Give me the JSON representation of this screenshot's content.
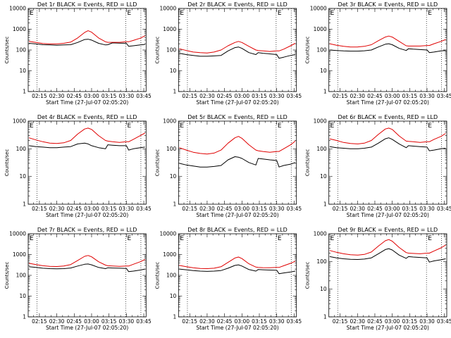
{
  "colors": {
    "events": "#000000",
    "lld": "#e00000",
    "background": "#ffffff"
  },
  "chart_data": [
    {
      "type": "line",
      "title": "Det 1r BLACK = Events, RED = LLD",
      "xlabel": "Start Time (27-Jul-07 02:05:20)",
      "ylabel": "Counts/sec",
      "yscale": "log",
      "ylim": [
        1,
        10000
      ],
      "xlim": [
        "02:05:20",
        "03:47:00"
      ],
      "x_tick_labels": [
        "02:15",
        "02:30",
        "02:45",
        "03:00",
        "03:15",
        "03:30",
        "03:45"
      ],
      "y_tick_labels": [
        "1",
        "10",
        "100",
        "1000",
        "10000"
      ],
      "vertical_lines": [
        "02:13:00",
        "03:29:30",
        "03:42:30"
      ],
      "corner_letter": "E",
      "x": [
        "02:06",
        "02:12",
        "02:18",
        "02:24",
        "02:30",
        "02:36",
        "02:42",
        "02:48",
        "02:54",
        "02:57",
        "03:00",
        "03:06",
        "03:12",
        "03:14",
        "03:18",
        "03:24",
        "03:30",
        "03:32",
        "03:36",
        "03:42",
        "03:46"
      ],
      "series": [
        {
          "color": "black",
          "values": [
            210,
            195,
            180,
            175,
            170,
            175,
            180,
            230,
            320,
            330,
            300,
            210,
            175,
            180,
            220,
            215,
            210,
            150,
            160,
            175,
            185
          ]
        },
        {
          "color": "red",
          "values": [
            260,
            230,
            205,
            195,
            195,
            210,
            240,
            380,
            700,
            850,
            720,
            380,
            250,
            235,
            235,
            235,
            250,
            250,
            290,
            370,
            480
          ]
        }
      ]
    },
    {
      "type": "line",
      "title": "Det 2r BLACK = Events, RED = LLD",
      "xlabel": "Start Time (27-Jul-07 02:05:20)",
      "ylabel": "Counts/sec",
      "yscale": "log",
      "ylim": [
        1,
        10000
      ],
      "xlim": [
        "02:05:20",
        "03:47:00"
      ],
      "x_tick_labels": [
        "02:15",
        "02:30",
        "02:45",
        "03:00",
        "03:15",
        "03:30",
        "03:45"
      ],
      "y_tick_labels": [
        "1",
        "10",
        "100",
        "1000",
        "10000"
      ],
      "vertical_lines": [
        "02:13:00",
        "03:29:30",
        "03:42:30"
      ],
      "corner_letter": "E",
      "x": [
        "02:06",
        "02:12",
        "02:18",
        "02:24",
        "02:30",
        "02:36",
        "02:42",
        "02:48",
        "02:54",
        "02:57",
        "03:00",
        "03:06",
        "03:12",
        "03:14",
        "03:18",
        "03:24",
        "03:30",
        "03:32",
        "03:36",
        "03:42",
        "03:46"
      ],
      "series": [
        {
          "color": "black",
          "values": [
            70,
            60,
            55,
            50,
            50,
            52,
            55,
            90,
            130,
            140,
            120,
            75,
            60,
            75,
            70,
            65,
            60,
            40,
            45,
            55,
            60
          ]
        },
        {
          "color": "red",
          "values": [
            115,
            95,
            80,
            75,
            72,
            80,
            100,
            160,
            230,
            260,
            230,
            150,
            100,
            95,
            90,
            85,
            90,
            90,
            110,
            160,
            210
          ]
        }
      ]
    },
    {
      "type": "line",
      "title": "Det 3r BLACK = Events, RED = LLD",
      "xlabel": "Start Time (27-Jul-07 02:05:20)",
      "ylabel": "Counts/sec",
      "yscale": "log",
      "ylim": [
        1,
        10000
      ],
      "xlim": [
        "02:05:20",
        "03:47:00"
      ],
      "x_tick_labels": [
        "02:15",
        "02:30",
        "02:45",
        "03:00",
        "03:15",
        "03:30",
        "03:45"
      ],
      "y_tick_labels": [
        "1",
        "10",
        "100",
        "1000",
        "10000"
      ],
      "vertical_lines": [
        "02:13:00",
        "03:29:30",
        "03:42:30"
      ],
      "corner_letter": "E",
      "x": [
        "02:06",
        "02:12",
        "02:18",
        "02:24",
        "02:30",
        "02:36",
        "02:42",
        "02:48",
        "02:54",
        "02:57",
        "03:00",
        "03:06",
        "03:12",
        "03:14",
        "03:18",
        "03:24",
        "03:30",
        "03:32",
        "03:36",
        "03:42",
        "03:46"
      ],
      "series": [
        {
          "color": "black",
          "values": [
            100,
            95,
            90,
            88,
            88,
            92,
            100,
            140,
            190,
            200,
            180,
            120,
            95,
            115,
            110,
            105,
            100,
            75,
            80,
            90,
            95
          ]
        },
        {
          "color": "red",
          "values": [
            200,
            170,
            150,
            140,
            140,
            150,
            180,
            280,
            420,
            470,
            420,
            260,
            160,
            155,
            155,
            155,
            165,
            165,
            200,
            260,
            320
          ]
        }
      ]
    },
    {
      "type": "line",
      "title": "Det 4r BLACK = Events, RED = LLD",
      "xlabel": "Start Time (27-Jul-07 02:05:20)",
      "ylabel": "Counts/sec",
      "yscale": "log",
      "ylim": [
        1,
        1000
      ],
      "xlim": [
        "02:05:20",
        "03:47:00"
      ],
      "x_tick_labels": [
        "02:15",
        "02:30",
        "02:45",
        "03:00",
        "03:15",
        "03:30",
        "03:45"
      ],
      "y_tick_labels": [
        "1",
        "10",
        "100",
        "1000"
      ],
      "vertical_lines": [
        "02:13:00",
        "03:29:30",
        "03:42:30"
      ],
      "corner_letter": "E",
      "x": [
        "02:06",
        "02:12",
        "02:18",
        "02:24",
        "02:30",
        "02:36",
        "02:42",
        "02:48",
        "02:54",
        "02:57",
        "03:00",
        "03:06",
        "03:12",
        "03:14",
        "03:18",
        "03:24",
        "03:30",
        "03:32",
        "03:36",
        "03:42",
        "03:46"
      ],
      "series": [
        {
          "color": "black",
          "values": [
            130,
            120,
            115,
            110,
            110,
            115,
            120,
            150,
            160,
            150,
            130,
            110,
            100,
            140,
            135,
            130,
            130,
            90,
            100,
            110,
            115
          ]
        },
        {
          "color": "red",
          "values": [
            250,
            210,
            180,
            160,
            155,
            165,
            200,
            340,
            520,
            560,
            500,
            300,
            200,
            190,
            180,
            170,
            180,
            180,
            220,
            300,
            370
          ]
        }
      ]
    },
    {
      "type": "line",
      "title": "Det 5r BLACK = Events, RED = LLD",
      "xlabel": "Start Time (27-Jul-07 02:05:20)",
      "ylabel": "Counts/sec",
      "yscale": "log",
      "ylim": [
        1,
        1000
      ],
      "xlim": [
        "02:05:20",
        "03:47:00"
      ],
      "x_tick_labels": [
        "02:15",
        "02:30",
        "02:45",
        "03:00",
        "03:15",
        "03:30",
        "03:45"
      ],
      "y_tick_labels": [
        "1",
        "10",
        "100",
        "1000"
      ],
      "vertical_lines": [
        "02:13:00",
        "03:29:30",
        "03:42:30"
      ],
      "corner_letter": "E",
      "x": [
        "02:06",
        "02:12",
        "02:18",
        "02:24",
        "02:30",
        "02:36",
        "02:42",
        "02:48",
        "02:54",
        "02:57",
        "03:00",
        "03:06",
        "03:12",
        "03:14",
        "03:18",
        "03:24",
        "03:30",
        "03:32",
        "03:36",
        "03:42",
        "03:46"
      ],
      "series": [
        {
          "color": "black",
          "values": [
            30,
            26,
            24,
            22,
            22,
            23,
            25,
            40,
            52,
            50,
            45,
            32,
            26,
            45,
            43,
            40,
            38,
            22,
            25,
            28,
            32
          ]
        },
        {
          "color": "red",
          "values": [
            110,
            90,
            75,
            68,
            65,
            70,
            90,
            160,
            250,
            280,
            240,
            140,
            90,
            85,
            80,
            75,
            80,
            80,
            100,
            140,
            190
          ]
        }
      ]
    },
    {
      "type": "line",
      "title": "Det 6r BLACK = Events, RED = LLD",
      "xlabel": "Start Time (27-Jul-07 02:05:20)",
      "ylabel": "Counts/sec",
      "yscale": "log",
      "ylim": [
        1,
        1000
      ],
      "xlim": [
        "02:05:20",
        "03:47:00"
      ],
      "x_tick_labels": [
        "02:15",
        "02:30",
        "02:45",
        "03:00",
        "03:15",
        "03:30",
        "03:45"
      ],
      "y_tick_labels": [
        "1",
        "10",
        "100",
        "1000"
      ],
      "vertical_lines": [
        "02:13:00",
        "03:29:30",
        "03:42:30"
      ],
      "corner_letter": "E",
      "x": [
        "02:06",
        "02:12",
        "02:18",
        "02:24",
        "02:30",
        "02:36",
        "02:42",
        "02:48",
        "02:54",
        "02:57",
        "03:00",
        "03:06",
        "03:12",
        "03:14",
        "03:18",
        "03:24",
        "03:30",
        "03:32",
        "03:36",
        "03:42",
        "03:46"
      ],
      "series": [
        {
          "color": "black",
          "values": [
            120,
            110,
            105,
            100,
            100,
            105,
            115,
            160,
            230,
            250,
            220,
            150,
            110,
            130,
            125,
            120,
            115,
            85,
            90,
            100,
            105
          ]
        },
        {
          "color": "red",
          "values": [
            230,
            200,
            170,
            155,
            150,
            160,
            200,
            330,
            520,
            560,
            500,
            290,
            190,
            185,
            180,
            170,
            180,
            180,
            220,
            280,
            360
          ]
        }
      ]
    },
    {
      "type": "line",
      "title": "Det 7r BLACK = Events, RED = LLD",
      "xlabel": "Start Time (27-Jul-07 02:05:20)",
      "ylabel": "Counts/sec",
      "yscale": "log",
      "ylim": [
        1,
        10000
      ],
      "xlim": [
        "02:05:20",
        "03:47:00"
      ],
      "x_tick_labels": [
        "02:15",
        "02:30",
        "02:45",
        "03:00",
        "03:15",
        "03:30",
        "03:45"
      ],
      "y_tick_labels": [
        "1",
        "10",
        "100",
        "1000",
        "10000"
      ],
      "vertical_lines": [
        "02:13:00",
        "03:29:30",
        "03:42:30"
      ],
      "corner_letter": "E",
      "x": [
        "02:06",
        "02:12",
        "02:18",
        "02:24",
        "02:30",
        "02:36",
        "02:42",
        "02:48",
        "02:54",
        "02:57",
        "03:00",
        "03:06",
        "03:12",
        "03:14",
        "03:18",
        "03:24",
        "03:30",
        "03:32",
        "03:36",
        "03:42",
        "03:46"
      ],
      "series": [
        {
          "color": "black",
          "values": [
            260,
            240,
            220,
            210,
            205,
            210,
            225,
            280,
            340,
            350,
            320,
            240,
            210,
            230,
            225,
            220,
            215,
            150,
            160,
            180,
            200
          ]
        },
        {
          "color": "red",
          "values": [
            380,
            330,
            290,
            270,
            265,
            280,
            330,
            520,
            820,
            900,
            780,
            450,
            310,
            290,
            280,
            270,
            280,
            280,
            340,
            450,
            580
          ]
        }
      ]
    },
    {
      "type": "line",
      "title": "Det 8r BLACK = Events, RED = LLD",
      "xlabel": "Start Time (27-Jul-07 02:05:20)",
      "ylabel": "Counts/sec",
      "yscale": "log",
      "ylim": [
        1,
        10000
      ],
      "xlim": [
        "02:05:20",
        "03:47:00"
      ],
      "x_tick_labels": [
        "02:15",
        "02:30",
        "02:45",
        "03:00",
        "03:15",
        "03:30",
        "03:45"
      ],
      "y_tick_labels": [
        "1",
        "10",
        "100",
        "1000",
        "10000"
      ],
      "vertical_lines": [
        "02:13:00",
        "03:29:30",
        "03:42:30"
      ],
      "corner_letter": "E",
      "x": [
        "02:06",
        "02:12",
        "02:18",
        "02:24",
        "02:30",
        "02:36",
        "02:42",
        "02:48",
        "02:54",
        "02:57",
        "03:00",
        "03:06",
        "03:12",
        "03:14",
        "03:18",
        "03:24",
        "03:30",
        "03:32",
        "03:36",
        "03:42",
        "03:46"
      ],
      "series": [
        {
          "color": "black",
          "values": [
            200,
            185,
            170,
            160,
            155,
            160,
            170,
            220,
            300,
            320,
            280,
            190,
            160,
            190,
            185,
            180,
            175,
            120,
            130,
            145,
            160
          ]
        },
        {
          "color": "red",
          "values": [
            300,
            260,
            230,
            215,
            210,
            220,
            260,
            420,
            680,
            760,
            640,
            360,
            250,
            240,
            235,
            230,
            240,
            240,
            290,
            380,
            480
          ]
        }
      ]
    },
    {
      "type": "line",
      "title": "Det 9r BLACK = Events, RED = LLD",
      "xlabel": "Start Time (27-Jul-07 02:05:20)",
      "ylabel": "Counts/sec",
      "yscale": "log",
      "ylim": [
        1,
        1000
      ],
      "xlim": [
        "02:05:20",
        "03:47:00"
      ],
      "x_tick_labels": [
        "02:15",
        "02:30",
        "02:45",
        "03:00",
        "03:15",
        "03:30",
        "03:45"
      ],
      "y_tick_labels": [
        "1",
        "10",
        "100",
        "1000"
      ],
      "vertical_lines": [
        "02:13:00",
        "03:29:30",
        "03:42:30"
      ],
      "corner_letter": "E",
      "x": [
        "02:06",
        "02:12",
        "02:18",
        "02:24",
        "02:30",
        "02:36",
        "02:42",
        "02:48",
        "02:54",
        "02:57",
        "03:00",
        "03:06",
        "03:12",
        "03:14",
        "03:18",
        "03:24",
        "03:30",
        "03:32",
        "03:36",
        "03:42",
        "03:46"
      ],
      "series": [
        {
          "color": "black",
          "values": [
            150,
            135,
            125,
            120,
            118,
            122,
            135,
            190,
            270,
            290,
            260,
            170,
            130,
            150,
            145,
            140,
            135,
            95,
            105,
            115,
            125
          ]
        },
        {
          "color": "red",
          "values": [
            250,
            215,
            190,
            175,
            170,
            180,
            220,
            360,
            560,
            620,
            540,
            320,
            210,
            200,
            195,
            190,
            200,
            200,
            240,
            310,
            390
          ]
        }
      ]
    }
  ]
}
